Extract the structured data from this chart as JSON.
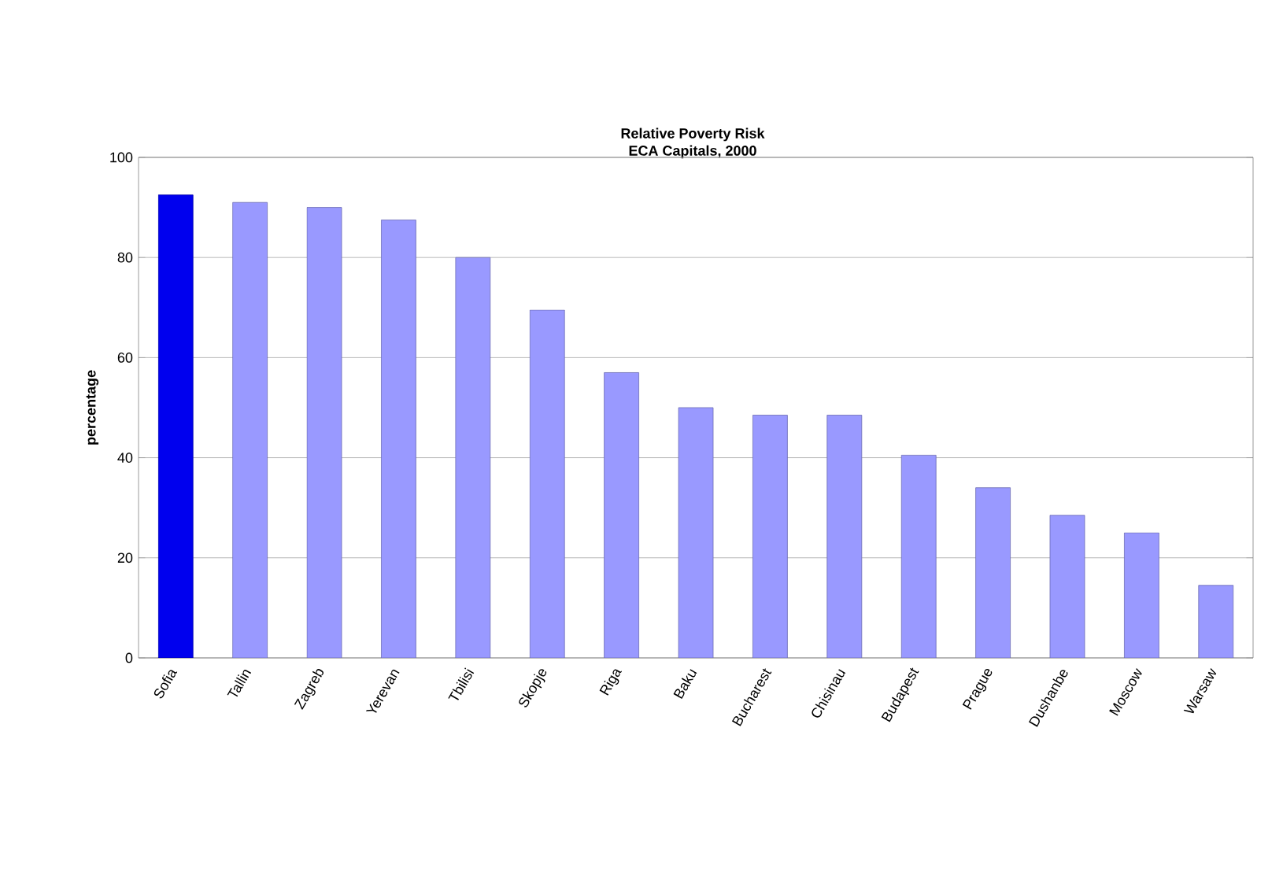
{
  "chart_data": {
    "type": "bar",
    "title": "Relative Poverty Risk",
    "subtitle": "ECA Capitals, 2000",
    "ylabel": "percentage",
    "categories": [
      "Sofia",
      "Tallin",
      "Zagreb",
      "Yerevan",
      "Tbilisi",
      "Skopje",
      "Riga",
      "Baku",
      "Bucharest",
      "Chisinau",
      "Budapest",
      "Prague",
      "Dushanbe",
      "Moscow",
      "Warsaw"
    ],
    "values": [
      92.5,
      91,
      90,
      87.5,
      80,
      69.5,
      57,
      50,
      48.5,
      48.5,
      40.5,
      34,
      28.5,
      25,
      14.5
    ],
    "colors": [
      "#0000ee",
      "#9999ff",
      "#9999ff",
      "#9999ff",
      "#9999ff",
      "#9999ff",
      "#9999ff",
      "#9999ff",
      "#9999ff",
      "#9999ff",
      "#9999ff",
      "#9999ff",
      "#9999ff",
      "#9999ff",
      "#9999ff"
    ],
    "ylim": [
      0,
      100
    ],
    "yticks": [
      0,
      20,
      40,
      60,
      80,
      100
    ],
    "grid": "y"
  }
}
